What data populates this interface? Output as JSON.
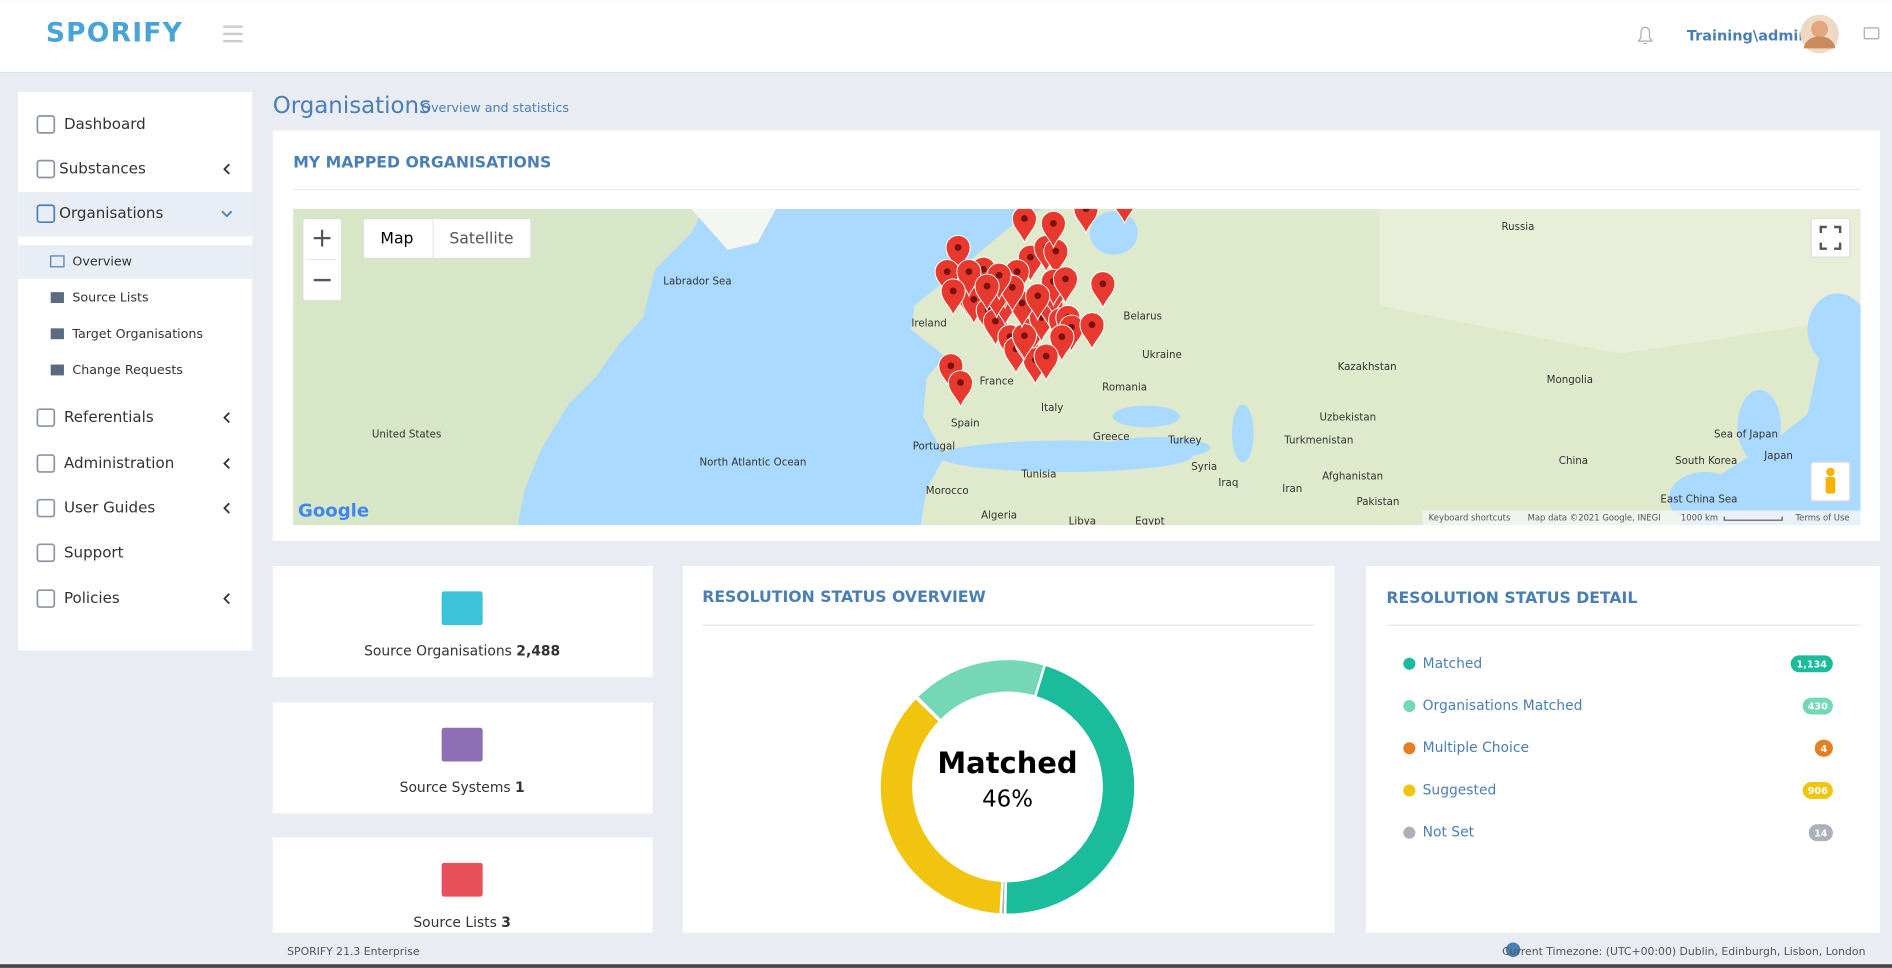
{
  "header": {
    "logo": "SPORIFY",
    "user": "Training\\admin"
  },
  "sidebar": {
    "items": [
      "Dashboard",
      "Substances",
      "Organisations",
      "Referentials",
      "Administration",
      "User Guides",
      "Support",
      "Policies"
    ],
    "subitems": [
      "Overview",
      "Source Lists",
      "Target Organisations",
      "Change Requests"
    ]
  },
  "page": {
    "title": "Organisations",
    "subtitle": "Overview and statistics"
  },
  "map": {
    "title": "MY MAPPED ORGANISATIONS",
    "buttons": [
      "Map",
      "Satellite"
    ],
    "labels": [
      "Labrador Sea",
      "United States",
      "North Atlantic Ocean",
      "Ireland",
      "France",
      "Spain",
      "Portugal",
      "Italy",
      "Belarus",
      "Ukraine",
      "Romania",
      "Greece",
      "Turkey",
      "Russia",
      "Kazakhstan",
      "Mongolia",
      "Uzbekistan",
      "Turkmenistan",
      "Afghanistan",
      "Iran",
      "Iraq",
      "Syria",
      "Pakistan",
      "China",
      "South Korea",
      "Japan",
      "Morocco",
      "Algeria",
      "Libya",
      "Egypt",
      "Tunisia",
      "Sea of Japan",
      "East China Sea"
    ],
    "attribution": {
      "logo": "Google",
      "shortcuts": "Keyboard shortcuts",
      "data": "Map data ©2021 Google, INEGI",
      "scale": "1000 km",
      "terms": "Terms of Use"
    }
  },
  "stats": [
    {
      "label": "Source Organisations",
      "value": "2,488"
    },
    {
      "label": "Source Systems",
      "value": "1"
    },
    {
      "label": "Source Lists",
      "value": "3"
    }
  ],
  "chart_data": {
    "type": "donut",
    "title": "RESOLUTION STATUS OVERVIEW",
    "center_label": "Matched",
    "center_value": "46%",
    "categories": [
      "Matched",
      "Organisations Matched",
      "Multiple Choice",
      "Suggested",
      "Not Set"
    ],
    "values": [
      1134,
      430,
      4,
      906,
      14
    ],
    "value_labels": [
      "1,134",
      "430",
      "4",
      "906",
      "14"
    ],
    "colors": [
      "#1bbc9b",
      "#76d7b6",
      "#e67e22",
      "#f1c40f",
      "#a9b1bb"
    ]
  },
  "detail": {
    "title": "RESOLUTION STATUS DETAIL"
  },
  "footer": {
    "version": "SPORIFY 21.3 Enterprise",
    "timezone": "Current Timezone: (UTC+00:00) Dublin, Edinburgh, Lisbon, London"
  }
}
